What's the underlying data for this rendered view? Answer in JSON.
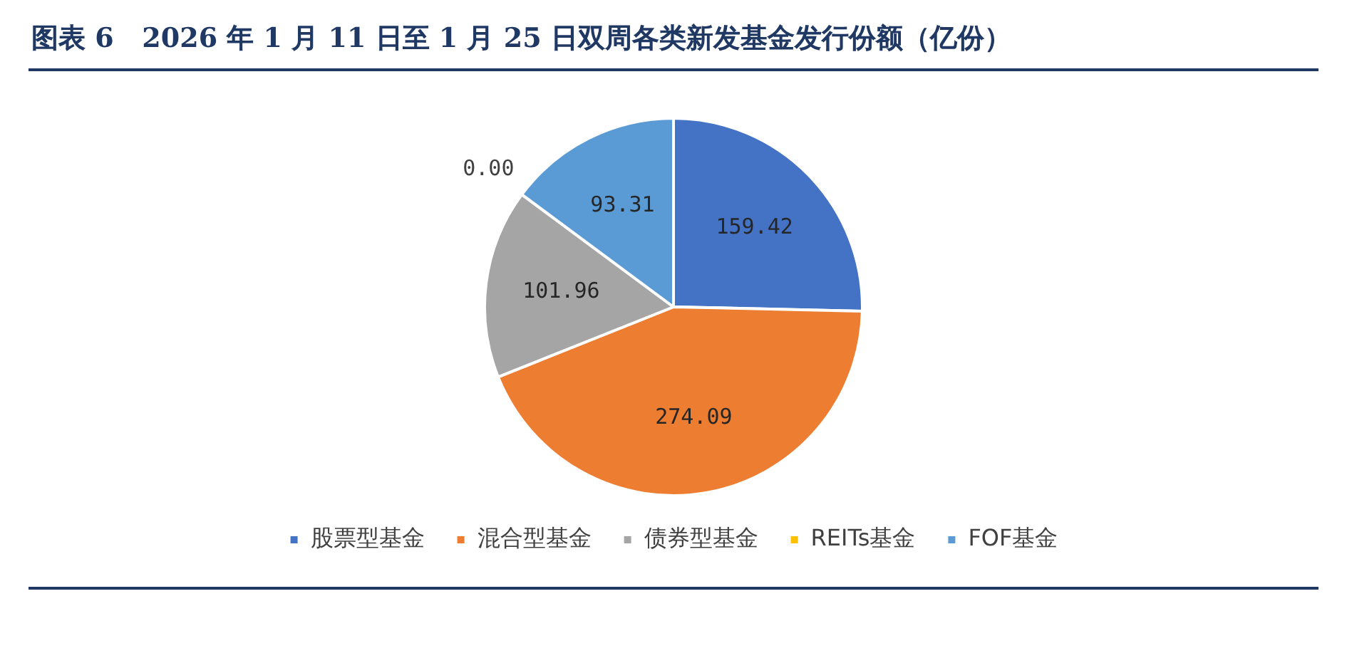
{
  "chart_data": {
    "type": "pie",
    "title": "图表 6   2026 年 1 月 11 日至 1 月 25 日双周各类新发基金发行份额（亿份）",
    "categories": [
      "股票型基金",
      "混合型基金",
      "债券型基金",
      "REITs基金",
      "FOF基金"
    ],
    "values": [
      159.42,
      274.09,
      101.96,
      0.0,
      93.31
    ],
    "value_labels": [
      "159.42",
      "274.09",
      "101.96",
      "0.00",
      "93.31"
    ],
    "colors": [
      "#4472c4",
      "#ed7d31",
      "#a5a5a5",
      "#ffc000",
      "#5b9bd5"
    ],
    "legend": "bottom"
  }
}
